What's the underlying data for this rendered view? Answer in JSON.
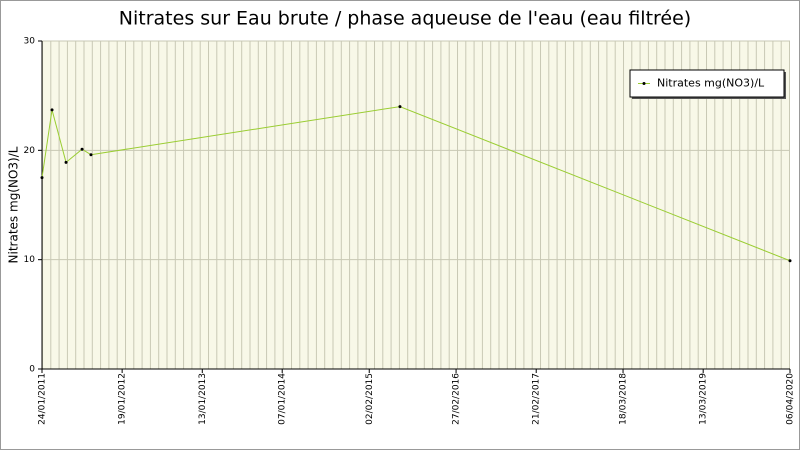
{
  "chart_data": {
    "type": "line",
    "title": "Nitrates sur Eau brute / phase aqueuse de l'eau (eau filtrée)",
    "y_label": "Nitrates mg(NO3)/L",
    "x": [
      "2011-01-24",
      "2011-03-10",
      "2011-05-12",
      "2011-07-23",
      "2011-09-01",
      "2015-06-20",
      "2020-04-06"
    ],
    "series": [
      {
        "name": "Nitrates mg(NO3)/L",
        "color": "#9acd32",
        "values": [
          17.5,
          23.7,
          18.9,
          20.1,
          19.6,
          24.0,
          9.9
        ]
      }
    ],
    "xlim": [
      "2011-01-24",
      "2020-04-06"
    ],
    "xticks": [
      {
        "value": "2011-01-24",
        "label": "24/01/2011"
      },
      {
        "value": "2012-01-19",
        "label": "19/01/2012"
      },
      {
        "value": "2013-01-13",
        "label": "13/01/2013"
      },
      {
        "value": "2014-01-07",
        "label": "07/01/2014"
      },
      {
        "value": "2015-02-02",
        "label": "02/02/2015"
      },
      {
        "value": "2016-02-27",
        "label": "27/02/2016"
      },
      {
        "value": "2017-02-21",
        "label": "21/02/2017"
      },
      {
        "value": "2018-03-18",
        "label": "18/03/2018"
      },
      {
        "value": "2019-03-13",
        "label": "13/03/2019"
      },
      {
        "value": "2020-04-06",
        "label": "06/04/2020"
      }
    ],
    "ylim": [
      0,
      30
    ],
    "yticks": [
      0,
      10,
      20,
      30
    ],
    "grid": true,
    "legend": "top-right"
  }
}
